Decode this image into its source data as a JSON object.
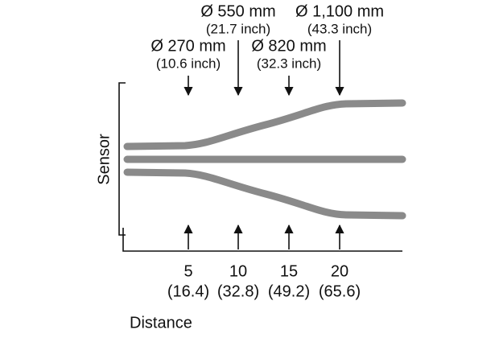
{
  "diameters": [
    {
      "size": "Ø 270 mm",
      "inch": "(10.6 inch)"
    },
    {
      "size": "Ø 550 mm",
      "inch": "(21.7 inch)"
    },
    {
      "size": "Ø 820 mm",
      "inch": "(32.3 inch)"
    },
    {
      "size": "Ø 1,100 mm",
      "inch": "(43.3 inch)"
    }
  ],
  "distances": [
    {
      "value": "5",
      "feet": "(16.4)"
    },
    {
      "value": "10",
      "feet": "(32.8)"
    },
    {
      "value": "15",
      "feet": "(49.2)"
    },
    {
      "value": "20",
      "feet": "(65.6)"
    }
  ],
  "sensor_label": "Sensor",
  "distance_label": "Distance"
}
